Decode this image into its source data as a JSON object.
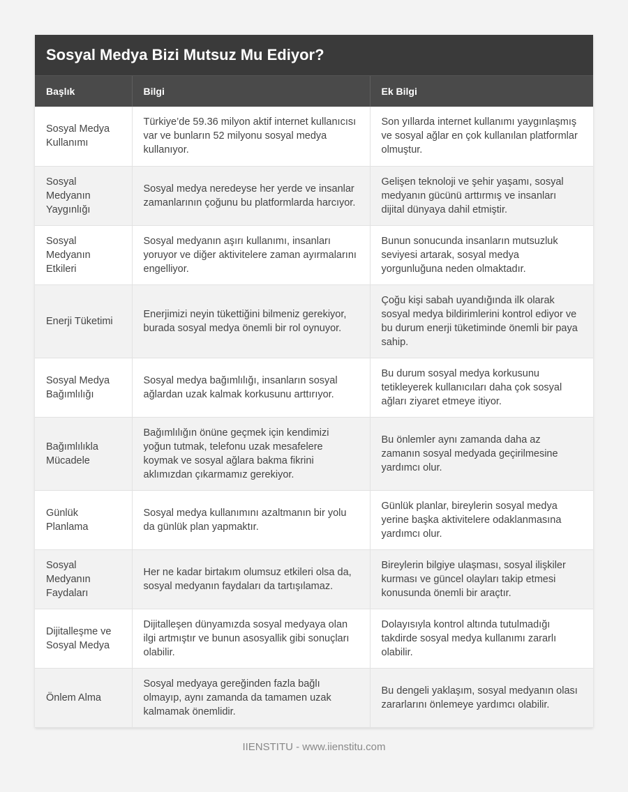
{
  "title": "Sosyal Medya Bizi Mutsuz Mu Ediyor?",
  "headers": [
    "Başlık",
    "Bilgi",
    "Ek Bilgi"
  ],
  "rows": [
    [
      "Sosyal Medya Kullanımı",
      "Türkiye’de 59.36 milyon aktif internet kullanıcısı var ve bunların 52 milyonu sosyal medya kullanıyor.",
      "Son yıllarda internet kullanımı yaygınlaşmış ve sosyal ağlar en çok kullanılan platformlar olmuştur."
    ],
    [
      "Sosyal Medyanın Yaygınlığı",
      "Sosyal medya neredeyse her yerde ve insanlar zamanlarının çoğunu bu platformlarda harcıyor.",
      "Gelişen teknoloji ve şehir yaşamı, sosyal medyanın gücünü arttırmış ve insanları dijital dünyaya dahil etmiştir."
    ],
    [
      "Sosyal Medyanın Etkileri",
      "Sosyal medyanın aşırı kullanımı, insanları yoruyor ve diğer aktivitelere zaman ayırmalarını engelliyor.",
      "Bunun sonucunda insanların mutsuzluk seviyesi artarak, sosyal medya yorgunluğuna neden olmaktadır."
    ],
    [
      "Enerji Tüketimi",
      "Enerjimizi neyin tükettiğini bilmeniz gerekiyor, burada sosyal medya önemli bir rol oynuyor.",
      "Çoğu kişi sabah uyandığında ilk olarak sosyal medya bildirimlerini kontrol ediyor ve bu durum enerji tüketiminde önemli bir paya sahip."
    ],
    [
      "Sosyal Medya Bağımlılığı",
      "Sosyal medya bağımlılığı, insanların sosyal ağlardan uzak kalmak korkusunu arttırıyor.",
      "Bu durum sosyal medya korkusunu tetikleyerek kullanıcıları daha çok sosyal ağları ziyaret etmeye itiyor."
    ],
    [
      "Bağımlılıkla Mücadele",
      "Bağımlılığın önüne geçmek için kendimizi yoğun tutmak, telefonu uzak mesafelere koymak ve sosyal ağlara bakma fikrini aklımızdan çıkarmamız gerekiyor.",
      "Bu önlemler aynı zamanda daha az zamanın sosyal medyada geçirilmesine yardımcı olur."
    ],
    [
      "Günlük Planlama",
      "Sosyal medya kullanımını azaltmanın bir yolu da günlük plan yapmaktır.",
      "Günlük planlar, bireylerin sosyal medya yerine başka aktivitelere odaklanmasına yardımcı olur."
    ],
    [
      "Sosyal Medyanın Faydaları",
      "Her ne kadar birtakım olumsuz etkileri olsa da, sosyal medyanın faydaları da tartışılamaz.",
      "Bireylerin bilgiye ulaşması, sosyal ilişkiler kurması ve güncel olayları takip etmesi konusunda önemli bir araçtır."
    ],
    [
      "Dijitalleşme ve Sosyal Medya",
      "Dijitalleşen dünyamızda sosyal medyaya olan ilgi artmıştır ve bunun asosyallik gibi sonuçları olabilir.",
      "Dolayısıyla kontrol altında tutulmadığı takdirde sosyal medya kullanımı zararlı olabilir."
    ],
    [
      "Önlem Alma",
      "Sosyal medyaya gereğinden fazla bağlı olmayıp, aynı zamanda da tamamen uzak kalmamak önemlidir.",
      "Bu dengeli yaklaşım, sosyal medyanın olası zararlarını önlemeye yardımcı olabilir."
    ]
  ],
  "footer": "IIENSTITU - www.iienstitu.com"
}
